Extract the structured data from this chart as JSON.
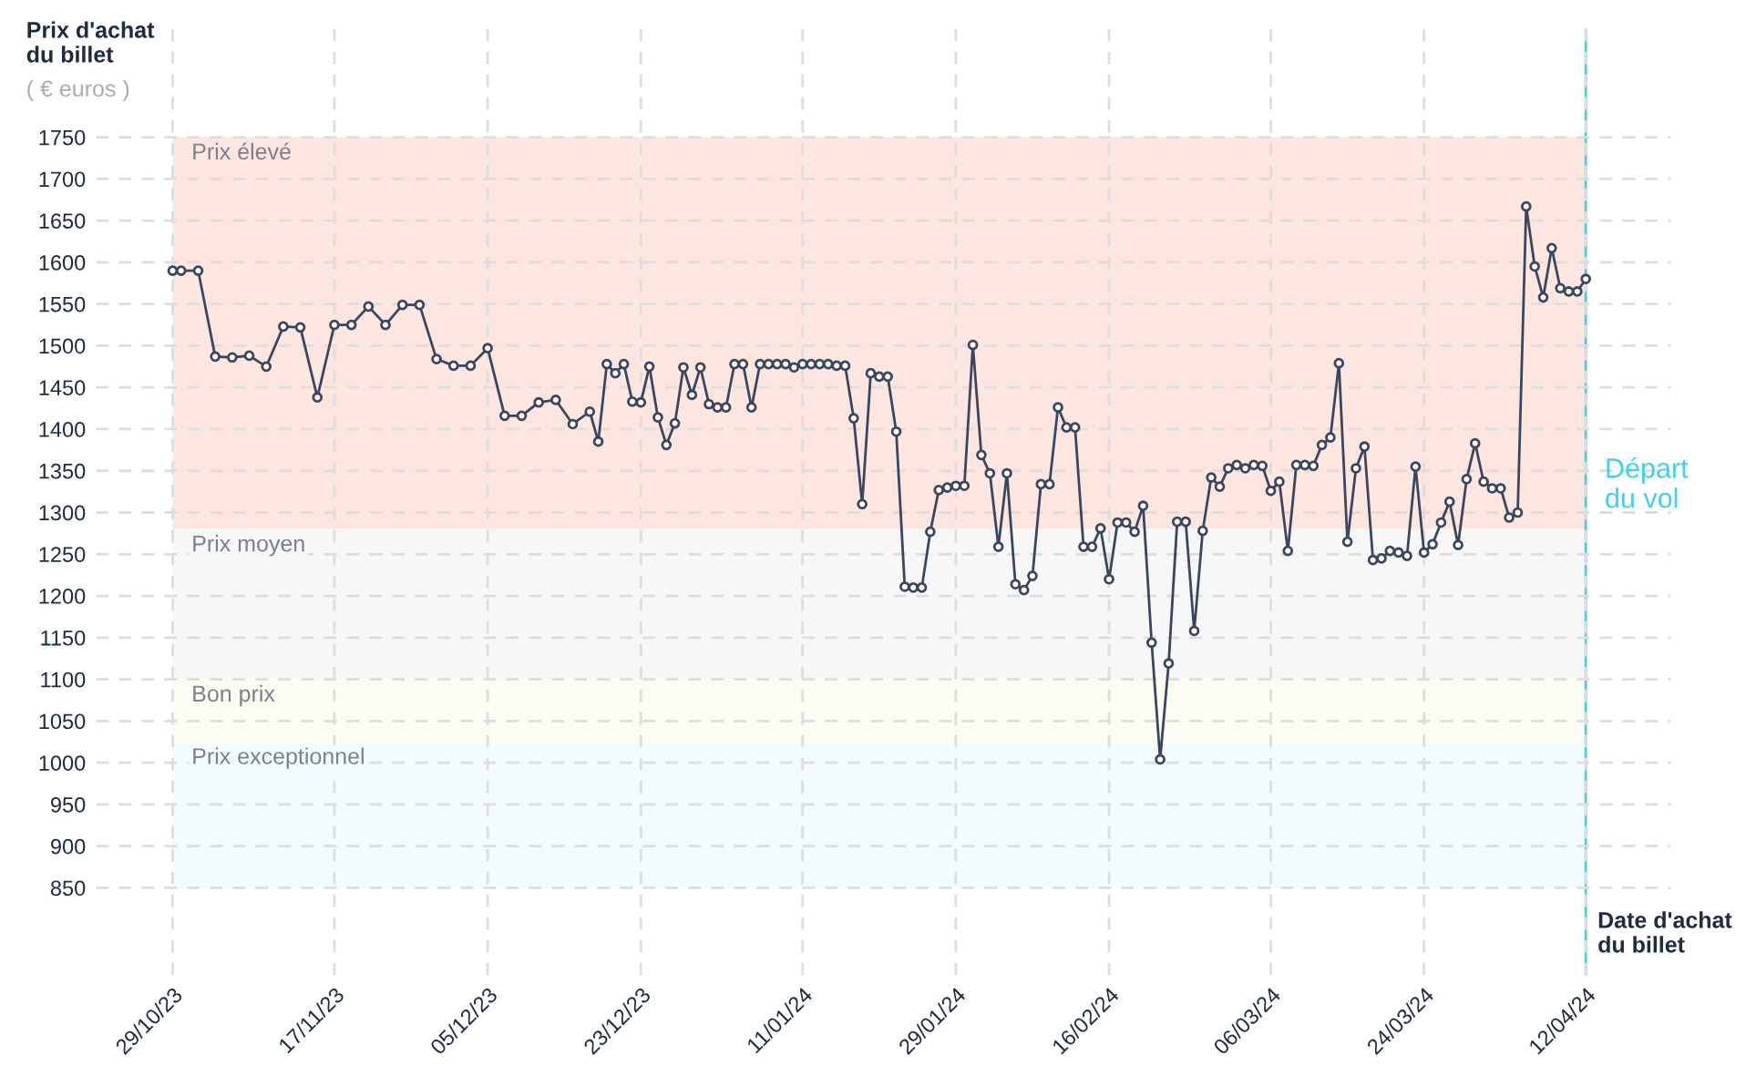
{
  "chart_data": {
    "type": "line",
    "ylabel": "Prix d'achat\ndu billet",
    "xlabel": "Date d'achat\ndu billet",
    "annotations": [
      "( € euros )"
    ],
    "x": [
      "2023-10-29",
      "2023-10-30",
      "2023-11-01",
      "2023-11-03",
      "2023-11-05",
      "2023-11-07",
      "2023-11-09",
      "2023-11-11",
      "2023-11-13",
      "2023-11-15",
      "2023-11-17",
      "2023-11-19",
      "2023-11-21",
      "2023-11-23",
      "2023-11-25",
      "2023-11-27",
      "2023-11-29",
      "2023-12-01",
      "2023-12-03",
      "2023-12-05",
      "2023-12-07",
      "2023-12-09",
      "2023-12-11",
      "2023-12-13",
      "2023-12-15",
      "2023-12-17",
      "2023-12-18",
      "2023-12-19",
      "2023-12-20",
      "2023-12-21",
      "2023-12-22",
      "2023-12-23",
      "2023-12-24",
      "2023-12-25",
      "2023-12-26",
      "2023-12-27",
      "2023-12-28",
      "2023-12-29",
      "2023-12-30",
      "2023-12-31",
      "2024-01-01",
      "2024-01-02",
      "2024-01-03",
      "2024-01-04",
      "2024-01-05",
      "2024-01-06",
      "2024-01-07",
      "2024-01-08",
      "2024-01-09",
      "2024-01-10",
      "2024-01-11",
      "2024-01-12",
      "2024-01-13",
      "2024-01-14",
      "2024-01-15",
      "2024-01-16",
      "2024-01-17",
      "2024-01-18",
      "2024-01-19",
      "2024-01-20",
      "2024-01-21",
      "2024-01-22",
      "2024-01-23",
      "2024-01-24",
      "2024-01-25",
      "2024-01-26",
      "2024-01-27",
      "2024-01-28",
      "2024-01-29",
      "2024-01-30",
      "2024-01-31",
      "2024-02-01",
      "2024-02-02",
      "2024-02-03",
      "2024-02-04",
      "2024-02-05",
      "2024-02-06",
      "2024-02-07",
      "2024-02-08",
      "2024-02-09",
      "2024-02-10",
      "2024-02-11",
      "2024-02-12",
      "2024-02-13",
      "2024-02-14",
      "2024-02-15",
      "2024-02-16",
      "2024-02-17",
      "2024-02-18",
      "2024-02-19",
      "2024-02-20",
      "2024-02-21",
      "2024-02-22",
      "2024-02-23",
      "2024-02-24",
      "2024-02-25",
      "2024-02-26",
      "2024-02-27",
      "2024-02-28",
      "2024-02-29",
      "2024-03-01",
      "2024-03-02",
      "2024-03-03",
      "2024-03-04",
      "2024-03-05",
      "2024-03-06",
      "2024-03-07",
      "2024-03-08",
      "2024-03-09",
      "2024-03-10",
      "2024-03-11",
      "2024-03-12",
      "2024-03-13",
      "2024-03-14",
      "2024-03-15",
      "2024-03-16",
      "2024-03-17",
      "2024-03-18",
      "2024-03-19",
      "2024-03-20",
      "2024-03-21",
      "2024-03-22",
      "2024-03-23",
      "2024-03-24",
      "2024-03-25",
      "2024-03-26",
      "2024-03-27",
      "2024-03-28",
      "2024-03-29",
      "2024-03-30",
      "2024-03-31",
      "2024-04-01",
      "2024-04-02",
      "2024-04-03",
      "2024-04-04",
      "2024-04-05",
      "2024-04-06",
      "2024-04-07",
      "2024-04-08",
      "2024-04-09",
      "2024-04-10",
      "2024-04-11",
      "2024-04-12"
    ],
    "series": [
      {
        "color": "#3a4660",
        "values": [
          1590,
          1590,
          1590,
          1487,
          1486,
          1488,
          1475,
          1523,
          1522,
          1438,
          1525,
          1525,
          1547,
          1525,
          1549,
          1549,
          1484,
          1476,
          1476,
          1497,
          1416,
          1416,
          1432,
          1435,
          1406,
          1421,
          1385,
          1478,
          1467,
          1478,
          1433,
          1432,
          1475,
          1414,
          1381,
          1407,
          1474,
          1441,
          1474,
          1430,
          1426,
          1426,
          1478,
          1478,
          1426,
          1478,
          1478,
          1478,
          1478,
          1474,
          1478,
          1478,
          1478,
          1478,
          1476,
          1476,
          1413,
          1310,
          1467,
          1463,
          1463,
          1397,
          1211,
          1210,
          1210,
          1277,
          1327,
          1330,
          1332,
          1332,
          1501,
          1369,
          1347,
          1259,
          1347,
          1214,
          1207,
          1224,
          1334,
          1334,
          1426,
          1402,
          1402,
          1259,
          1259,
          1281,
          1220,
          1288,
          1288,
          1277,
          1308,
          1144,
          1004,
          1119,
          1289,
          1289,
          1158,
          1278,
          1342,
          1331,
          1353,
          1357,
          1353,
          1357,
          1356,
          1326,
          1337,
          1254,
          1357,
          1357,
          1356,
          1381,
          1390,
          1479,
          1265,
          1353,
          1379,
          1243,
          1245,
          1254,
          1252,
          1248,
          1355,
          1252,
          1262,
          1288,
          1313,
          1261,
          1340,
          1383,
          1337,
          1329,
          1329,
          1294,
          1300,
          1667,
          1595,
          1558,
          1617,
          1569,
          1565,
          1565,
          1580
        ]
      }
    ],
    "marker": "circle",
    "line_style": "solid",
    "xlim": [
      "2023-10-20",
      "2024-04-22"
    ],
    "xticks": [
      {
        "value": "2023-10-29",
        "label": "29/10/23"
      },
      {
        "value": "2023-11-17",
        "label": "17/11/23"
      },
      {
        "value": "2023-12-05",
        "label": "05/12/23"
      },
      {
        "value": "2023-12-23",
        "label": "23/12/23"
      },
      {
        "value": "2024-01-11",
        "label": "11/01/24"
      },
      {
        "value": "2024-01-29",
        "label": "29/01/24"
      },
      {
        "value": "2024-02-16",
        "label": "16/02/24"
      },
      {
        "value": "2024-03-06",
        "label": "06/03/24"
      },
      {
        "value": "2024-03-24",
        "label": "24/03/24"
      },
      {
        "value": "2024-04-12",
        "label": "12/04/24"
      }
    ],
    "ylim": [
      745,
      1880
    ],
    "yticks": [
      850,
      900,
      950,
      1000,
      1050,
      1100,
      1150,
      1200,
      1250,
      1300,
      1350,
      1400,
      1450,
      1500,
      1550,
      1600,
      1650,
      1700,
      1750
    ],
    "grid": true,
    "legend": false,
    "bands": [
      {
        "axis": "y",
        "from": 1280,
        "to": 1750,
        "label": "Prix élevé",
        "color": "#fde6df"
      },
      {
        "axis": "y",
        "from": 1100,
        "to": 1280,
        "label": "Prix moyen",
        "color": "#f7f7f7"
      },
      {
        "axis": "y",
        "from": 1025,
        "to": 1100,
        "label": "Bon prix",
        "color": "#fcfcf3"
      },
      {
        "axis": "y",
        "from": 850,
        "to": 1025,
        "label": "Prix exceptionnel",
        "color": "#f2fbfd"
      }
    ],
    "ref_lines": [
      {
        "axis": "x",
        "value": "2024-04-12",
        "label": "Départ\ndu vol",
        "color": "#3fd0f0",
        "line_style": "solid"
      }
    ]
  }
}
